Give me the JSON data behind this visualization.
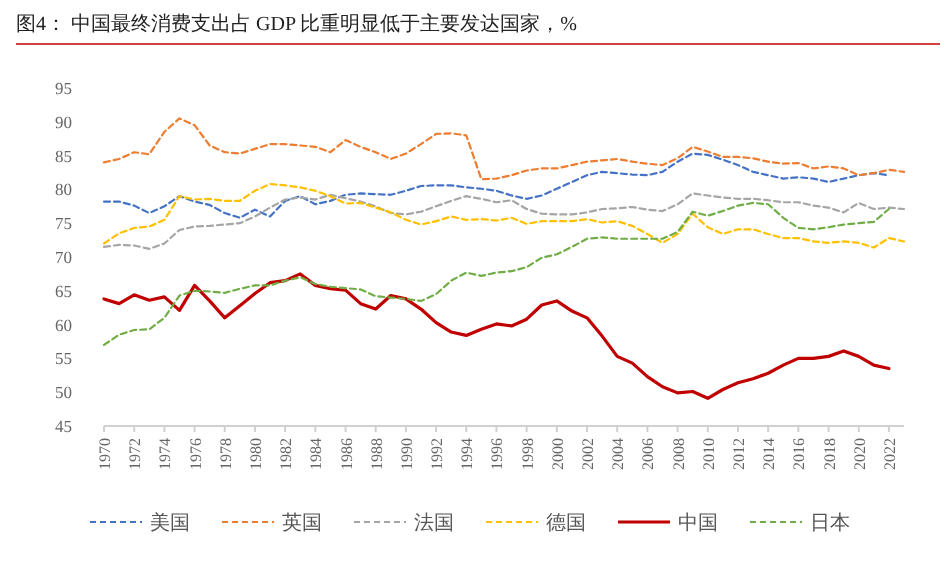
{
  "chart_data": {
    "type": "line",
    "title": "图4：  中国最终消费支出占 GDP 比重明显低于主要发达国家，%",
    "x": [
      1970,
      1971,
      1972,
      1973,
      1974,
      1975,
      1976,
      1977,
      1978,
      1979,
      1980,
      1981,
      1982,
      1983,
      1984,
      1985,
      1986,
      1987,
      1988,
      1989,
      1990,
      1991,
      1992,
      1993,
      1994,
      1995,
      1996,
      1997,
      1998,
      1999,
      2000,
      2001,
      2002,
      2003,
      2004,
      2005,
      2006,
      2007,
      2008,
      2009,
      2010,
      2011,
      2012,
      2013,
      2014,
      2015,
      2016,
      2017,
      2018,
      2019,
      2020,
      2021,
      2022,
      2023
    ],
    "xlim": [
      1970,
      2023
    ],
    "xticks": [
      1970,
      1972,
      1974,
      1976,
      1978,
      1980,
      1982,
      1984,
      1986,
      1988,
      1990,
      1992,
      1994,
      1996,
      1998,
      2000,
      2002,
      2004,
      2006,
      2008,
      2010,
      2012,
      2014,
      2016,
      2018,
      2020,
      2022
    ],
    "ylim": [
      45,
      95
    ],
    "yticks": [
      45,
      50,
      55,
      60,
      65,
      70,
      75,
      80,
      85,
      90,
      95
    ],
    "grid": false,
    "legend": "bottom",
    "series": [
      {
        "name": "美国",
        "color": "#4472c4",
        "line_style": "dashed",
        "values": [
          78.2,
          78.2,
          77.6,
          76.5,
          77.5,
          79,
          78.2,
          77.7,
          76.5,
          75.8,
          77,
          76,
          78.3,
          79,
          77.8,
          78.3,
          79.2,
          79.4,
          79.3,
          79.2,
          79.8,
          80.5,
          80.6,
          80.6,
          80.3,
          80.1,
          79.8,
          79.1,
          78.6,
          79.1,
          80.1,
          81.1,
          82.1,
          82.6,
          82.4,
          82.2,
          82.1,
          82.6,
          84.1,
          85.3,
          85.1,
          84.4,
          83.6,
          82.6,
          82.1,
          81.6,
          81.8,
          81.6,
          81.1,
          81.6,
          82.1,
          82.4,
          82.1,
          null
        ]
      },
      {
        "name": "英国",
        "color": "#ed7d31",
        "line_style": "dashed",
        "values": [
          84,
          84.5,
          85.5,
          85.2,
          88.5,
          90.5,
          89.5,
          86.5,
          85.5,
          85.3,
          86,
          86.7,
          86.7,
          86.5,
          86.3,
          85.5,
          87.3,
          86.3,
          85.5,
          84.5,
          85.3,
          86.7,
          88.2,
          88.3,
          88,
          81.5,
          81.6,
          82.1,
          82.8,
          83.1,
          83.1,
          83.6,
          84.1,
          84.3,
          84.5,
          84.1,
          83.8,
          83.6,
          84.6,
          86.3,
          85.6,
          84.8,
          84.8,
          84.6,
          84.1,
          83.8,
          83.9,
          83.1,
          83.4,
          83.1,
          82.1,
          82.4,
          82.9,
          82.6
        ]
      },
      {
        "name": "法国",
        "color": "#a5a5a5",
        "line_style": "dashed",
        "values": [
          71.5,
          71.8,
          71.7,
          71.2,
          72,
          74,
          74.5,
          74.6,
          74.8,
          75,
          76,
          77.3,
          78.5,
          78.8,
          78.5,
          79.2,
          78.7,
          78.2,
          77.5,
          76.5,
          76.3,
          76.7,
          77.5,
          78.3,
          79,
          78.6,
          78.1,
          78.4,
          77.1,
          76.4,
          76.3,
          76.3,
          76.6,
          77.1,
          77.2,
          77.4,
          77,
          76.8,
          77.8,
          79.4,
          79.1,
          78.8,
          78.6,
          78.6,
          78.4,
          78.1,
          78.1,
          77.6,
          77.3,
          76.6,
          78,
          77.1,
          77.3,
          77.1
        ]
      },
      {
        "name": "德国",
        "color": "#ffc000",
        "line_style": "dashed",
        "values": [
          72,
          73.5,
          74.3,
          74.5,
          75.5,
          79,
          78.5,
          78.6,
          78.3,
          78.3,
          79.8,
          80.8,
          80.6,
          80.3,
          79.8,
          79,
          77.9,
          78,
          77.3,
          76.6,
          75.5,
          74.8,
          75.3,
          76,
          75.5,
          75.6,
          75.4,
          75.8,
          74.9,
          75.3,
          75.3,
          75.3,
          75.6,
          75.1,
          75.3,
          74.6,
          73.4,
          72.1,
          73.4,
          76.4,
          74.4,
          73.4,
          74.1,
          74.1,
          73.4,
          72.8,
          72.8,
          72.3,
          72.1,
          72.3,
          72.1,
          71.4,
          72.8,
          72.3
        ]
      },
      {
        "name": "中国",
        "color": "#c00000",
        "line_style": "solid",
        "values": [
          63.8,
          63.1,
          64.4,
          63.6,
          64.1,
          62.1,
          65.8,
          63.5,
          61,
          62.8,
          64.6,
          66.2,
          66.5,
          67.5,
          65.8,
          65.3,
          65.1,
          63.1,
          62.3,
          64.3,
          63.8,
          62.3,
          60.3,
          58.9,
          58.4,
          59.3,
          60.1,
          59.8,
          60.8,
          62.9,
          63.5,
          62,
          61,
          58.3,
          55.3,
          54.3,
          52.3,
          50.8,
          49.9,
          50.1,
          49.1,
          50.4,
          51.4,
          52,
          52.8,
          54,
          55,
          55,
          55.3,
          56.1,
          55.3,
          54,
          53.5,
          null
        ]
      },
      {
        "name": "日本",
        "color": "#70ad47",
        "line_style": "dashed",
        "values": [
          57,
          58.5,
          59.2,
          59.3,
          61,
          64.3,
          65,
          64.9,
          64.7,
          65.3,
          65.8,
          65.8,
          66.5,
          67,
          66,
          65.6,
          65.4,
          65.2,
          64.2,
          64,
          63.8,
          63.5,
          64.5,
          66.5,
          67.7,
          67.2,
          67.7,
          67.9,
          68.5,
          69.9,
          70.4,
          71.5,
          72.7,
          72.9,
          72.7,
          72.7,
          72.7,
          72.7,
          73.7,
          76.7,
          76.1,
          76.8,
          77.6,
          78,
          77.8,
          75.8,
          74.3,
          74.1,
          74.4,
          74.8,
          75,
          75.2,
          77.1,
          null
        ]
      }
    ]
  }
}
